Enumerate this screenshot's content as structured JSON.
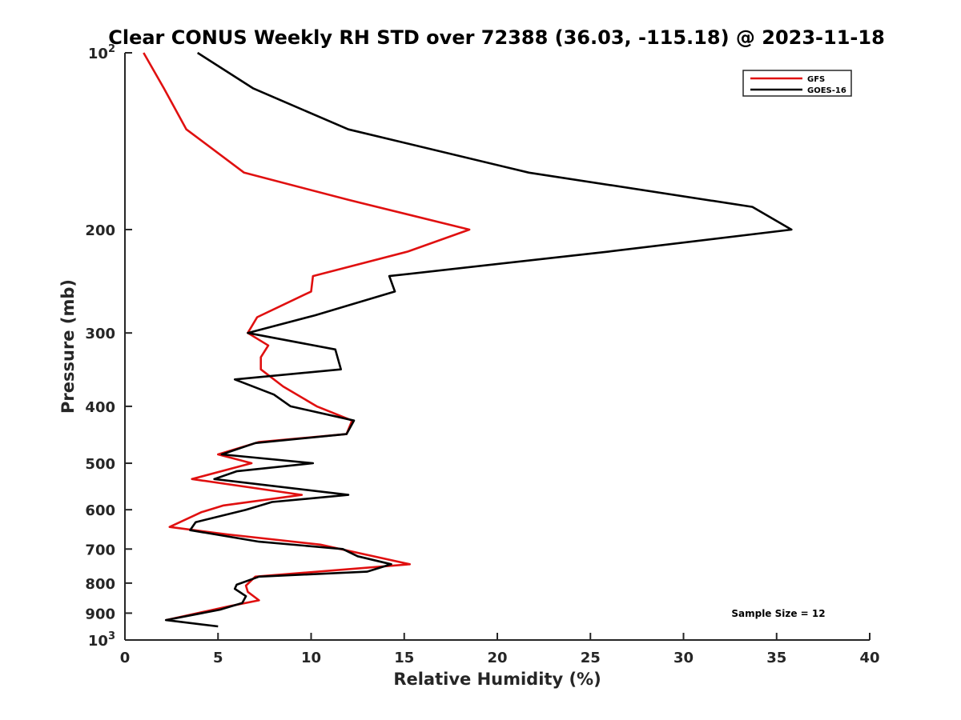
{
  "chart_data": {
    "type": "line",
    "title": "Clear CONUS Weekly RH STD over 72388 (36.03, -115.18) @ 2023-11-18",
    "xlabel": "Relative Humidity (%)",
    "ylabel": "Pressure (mb)",
    "xlim": [
      0,
      40
    ],
    "ylim": [
      100,
      1000
    ],
    "yscale": "log",
    "y_reversed": true,
    "grid": false,
    "legend_position": "top-right",
    "x_ticks": [
      0,
      5,
      10,
      15,
      20,
      25,
      30,
      35,
      40
    ],
    "y_ticks": [
      {
        "value": 100,
        "base": "10",
        "exp": "2"
      },
      {
        "value": 200,
        "label": "200"
      },
      {
        "value": 300,
        "label": "300"
      },
      {
        "value": 400,
        "label": "400"
      },
      {
        "value": 500,
        "label": "500"
      },
      {
        "value": 600,
        "label": "600"
      },
      {
        "value": 700,
        "label": "700"
      },
      {
        "value": 800,
        "label": "800"
      },
      {
        "value": 900,
        "label": "900"
      },
      {
        "value": 1000,
        "base": "10",
        "exp": "3"
      }
    ],
    "annotation": "Sample Size = 12",
    "series": [
      {
        "name": "GFS",
        "color": "#e01010",
        "points": [
          [
            1.0,
            100
          ],
          [
            2.1,
            115
          ],
          [
            3.3,
            135
          ],
          [
            6.4,
            160
          ],
          [
            12.0,
            178
          ],
          [
            18.5,
            200
          ],
          [
            15.2,
            218
          ],
          [
            10.1,
            240
          ],
          [
            10.0,
            255
          ],
          [
            7.1,
            282
          ],
          [
            6.6,
            300
          ],
          [
            7.7,
            315
          ],
          [
            7.3,
            330
          ],
          [
            7.3,
            346
          ],
          [
            8.5,
            370
          ],
          [
            10.3,
            400
          ],
          [
            12.2,
            423
          ],
          [
            11.9,
            446
          ],
          [
            7.2,
            460
          ],
          [
            5.0,
            483
          ],
          [
            6.8,
            500
          ],
          [
            3.6,
            532
          ],
          [
            9.5,
            566
          ],
          [
            5.3,
            590
          ],
          [
            4.1,
            606
          ],
          [
            2.4,
            642
          ],
          [
            5.5,
            661
          ],
          [
            10.5,
            688
          ],
          [
            15.3,
            743
          ],
          [
            7.0,
            780
          ],
          [
            6.5,
            808
          ],
          [
            6.6,
            828
          ],
          [
            7.2,
            856
          ],
          [
            5.6,
            876
          ],
          [
            2.2,
            925
          ]
        ]
      },
      {
        "name": "GOES-16",
        "color": "#000000",
        "points": [
          [
            3.9,
            100
          ],
          [
            6.9,
            115
          ],
          [
            12.0,
            135
          ],
          [
            21.7,
            160
          ],
          [
            33.7,
            183
          ],
          [
            35.8,
            200
          ],
          [
            26.0,
            218
          ],
          [
            14.2,
            240
          ],
          [
            14.5,
            255
          ],
          [
            10.2,
            280
          ],
          [
            6.6,
            300
          ],
          [
            11.3,
            320
          ],
          [
            11.6,
            346
          ],
          [
            5.9,
            360
          ],
          [
            8.0,
            382
          ],
          [
            8.9,
            400
          ],
          [
            12.3,
            423
          ],
          [
            11.9,
            446
          ],
          [
            7.0,
            462
          ],
          [
            5.2,
            483
          ],
          [
            10.1,
            500
          ],
          [
            6.0,
            516
          ],
          [
            4.8,
            532
          ],
          [
            12.0,
            566
          ],
          [
            7.9,
            582
          ],
          [
            6.5,
            600
          ],
          [
            3.8,
            630
          ],
          [
            3.5,
            650
          ],
          [
            7.2,
            680
          ],
          [
            11.7,
            700
          ],
          [
            12.5,
            720
          ],
          [
            14.3,
            743
          ],
          [
            13.0,
            765
          ],
          [
            7.2,
            780
          ],
          [
            6.0,
            805
          ],
          [
            5.9,
            818
          ],
          [
            6.5,
            842
          ],
          [
            6.3,
            865
          ],
          [
            5.1,
            888
          ],
          [
            2.2,
            925
          ],
          [
            5.0,
            948
          ]
        ]
      }
    ]
  }
}
